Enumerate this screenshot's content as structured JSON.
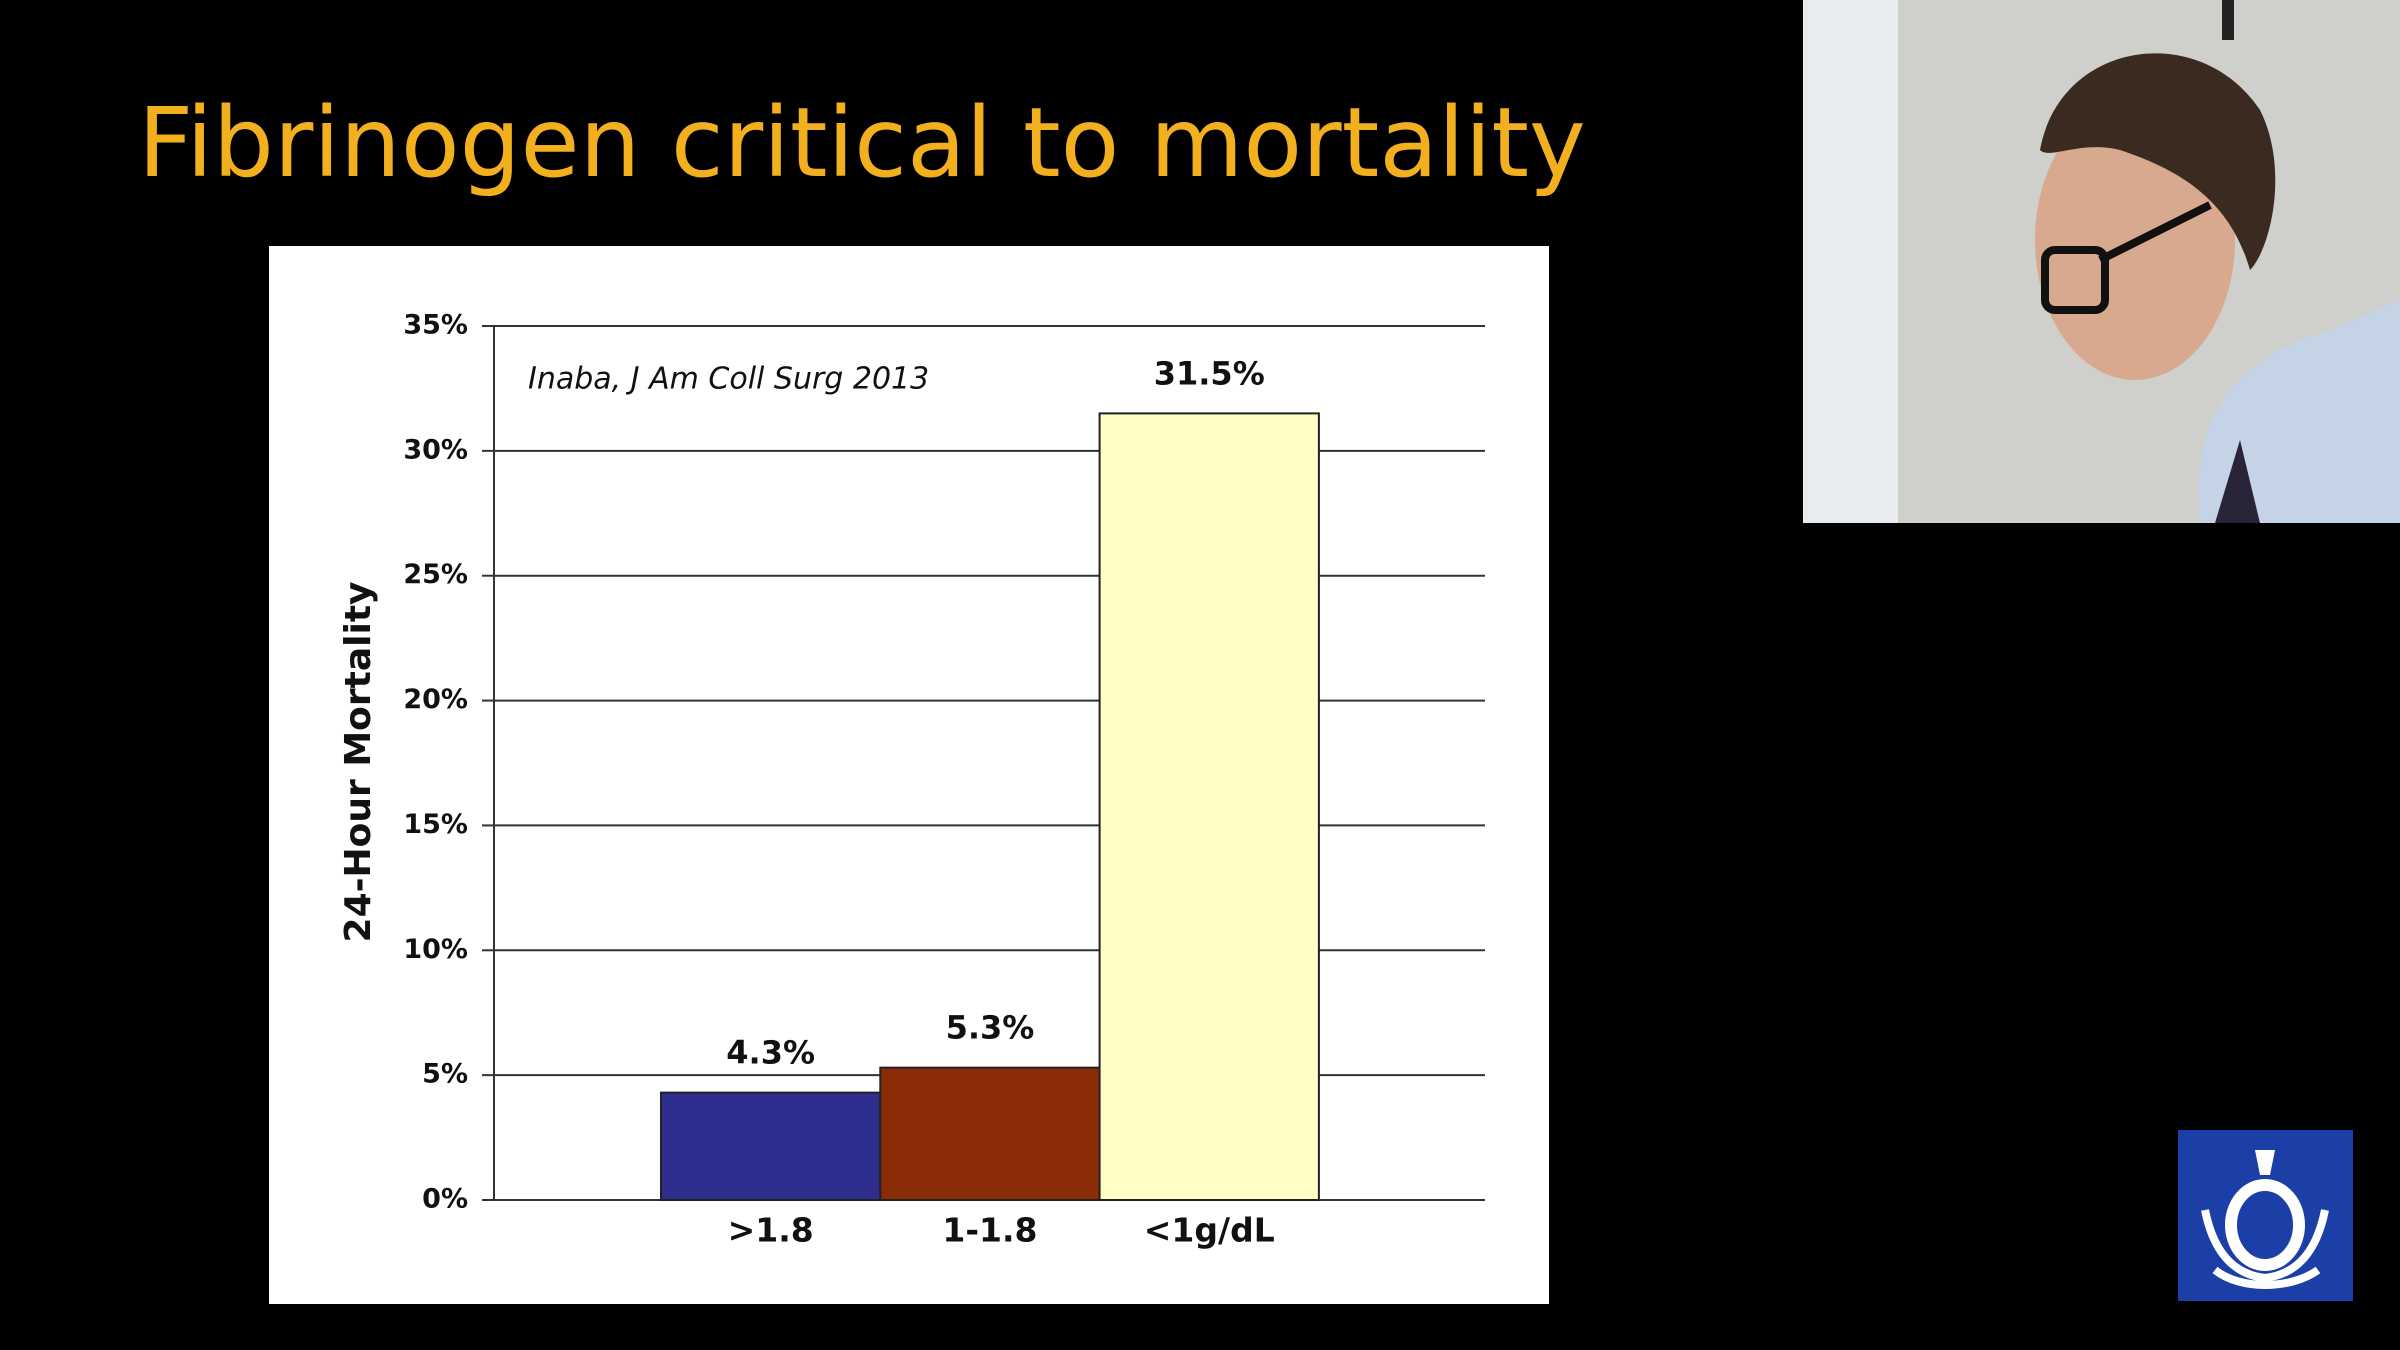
{
  "chart_data": {
    "type": "bar",
    "title": "Fibrinogen critical to mortality",
    "y_label": "24-Hour Mortality",
    "annotation": "Inaba, J Am Coll Surg 2013",
    "categories": [
      ">1.8",
      "1-1.8",
      "<1g/dL"
    ],
    "values": [
      4.3,
      5.3,
      31.5
    ],
    "value_labels": [
      "4.3%",
      "5.3%",
      "31.5%"
    ],
    "colors": [
      "#2e2e8e",
      "#8a2c05",
      "#ffffc6"
    ],
    "ylim": [
      0,
      35
    ],
    "yticks": [
      {
        "value": 0,
        "label": "0%"
      },
      {
        "value": 5,
        "label": "5%"
      },
      {
        "value": 10,
        "label": "10%"
      },
      {
        "value": 15,
        "label": "15%"
      },
      {
        "value": 20,
        "label": "20%"
      },
      {
        "value": 25,
        "label": "25%"
      },
      {
        "value": 30,
        "label": "30%"
      },
      {
        "value": 35,
        "label": "35%"
      }
    ],
    "grid": true
  }
}
